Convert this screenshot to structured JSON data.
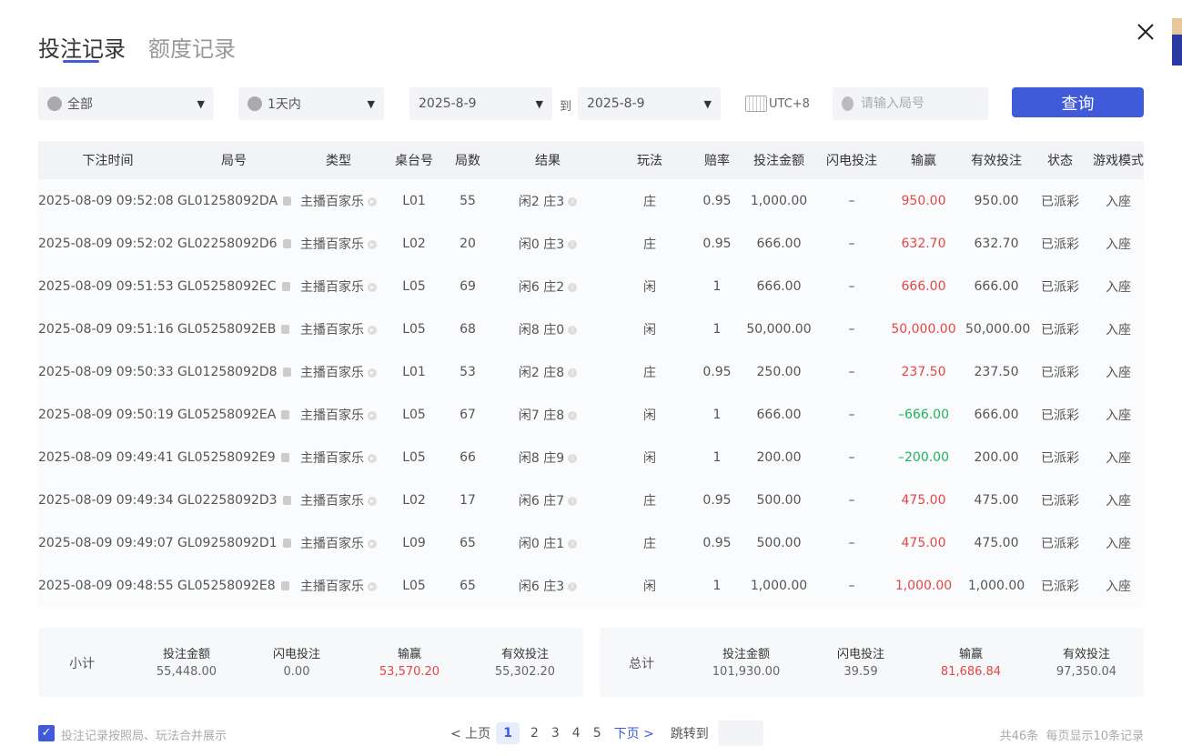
{
  "tabs": [
    {
      "label": "投注记录",
      "active": true
    },
    {
      "label": "额度记录",
      "active": false
    }
  ],
  "filters": {
    "category": "全部",
    "period": "1天内",
    "date_from": "2025-8-9",
    "to_label": "到",
    "date_to": "2025-8-9",
    "timezone": "UTC+8",
    "search_placeholder": "请输入局号",
    "search_value": "",
    "query_label": "查询"
  },
  "table": {
    "headers": [
      "下注时间",
      "局号",
      "类型",
      "桌台号",
      "局数",
      "结果",
      "玩法",
      "赔率",
      "投注金额",
      "闪电投注",
      "输赢",
      "有效投注",
      "状态",
      "游戏模式"
    ],
    "rows": [
      {
        "time": "2025-08-09 09:52:08",
        "id": "GL01258092DA",
        "type": "主播百家乐",
        "table": "L01",
        "round": "55",
        "result": "闲2 庄3",
        "play": "庄",
        "odds": "0.95",
        "bet": "1,000.00",
        "lightning": "–",
        "winloss": "950.00",
        "wl_color": "#e64646",
        "valid": "950.00",
        "status": "已派彩",
        "mode": "入座"
      },
      {
        "time": "2025-08-09 09:52:02",
        "id": "GL02258092D6",
        "type": "主播百家乐",
        "table": "L02",
        "round": "20",
        "result": "闲0 庄3",
        "play": "庄",
        "odds": "0.95",
        "bet": "666.00",
        "lightning": "–",
        "winloss": "632.70",
        "wl_color": "#e64646",
        "valid": "632.70",
        "status": "已派彩",
        "mode": "入座"
      },
      {
        "time": "2025-08-09 09:51:53",
        "id": "GL05258092EC",
        "type": "主播百家乐",
        "table": "L05",
        "round": "69",
        "result": "闲6 庄2",
        "play": "闲",
        "odds": "1",
        "bet": "666.00",
        "lightning": "–",
        "winloss": "666.00",
        "wl_color": "#e64646",
        "valid": "666.00",
        "status": "已派彩",
        "mode": "入座"
      },
      {
        "time": "2025-08-09 09:51:16",
        "id": "GL05258092EB",
        "type": "主播百家乐",
        "table": "L05",
        "round": "68",
        "result": "闲8 庄0",
        "play": "闲",
        "odds": "1",
        "bet": "50,000.00",
        "lightning": "–",
        "winloss": "50,000.00",
        "wl_color": "#e64646",
        "valid": "50,000.00",
        "status": "已派彩",
        "mode": "入座"
      },
      {
        "time": "2025-08-09 09:50:33",
        "id": "GL01258092D8",
        "type": "主播百家乐",
        "table": "L01",
        "round": "53",
        "result": "闲2 庄8",
        "play": "庄",
        "odds": "0.95",
        "bet": "250.00",
        "lightning": "–",
        "winloss": "237.50",
        "wl_color": "#e64646",
        "valid": "237.50",
        "status": "已派彩",
        "mode": "入座"
      },
      {
        "time": "2025-08-09 09:50:19",
        "id": "GL05258092EA",
        "type": "主播百家乐",
        "table": "L05",
        "round": "67",
        "result": "闲7 庄8",
        "play": "闲",
        "odds": "1",
        "bet": "666.00",
        "lightning": "–",
        "winloss": "–666.00",
        "wl_color": "#1db35c",
        "valid": "666.00",
        "status": "已派彩",
        "mode": "入座"
      },
      {
        "time": "2025-08-09 09:49:41",
        "id": "GL05258092E9",
        "type": "主播百家乐",
        "table": "L05",
        "round": "66",
        "result": "闲8 庄9",
        "play": "闲",
        "odds": "1",
        "bet": "200.00",
        "lightning": "–",
        "winloss": "–200.00",
        "wl_color": "#1db35c",
        "valid": "200.00",
        "status": "已派彩",
        "mode": "入座"
      },
      {
        "time": "2025-08-09 09:49:34",
        "id": "GL02258092D3",
        "type": "主播百家乐",
        "table": "L02",
        "round": "17",
        "result": "闲6 庄7",
        "play": "庄",
        "odds": "0.95",
        "bet": "500.00",
        "lightning": "–",
        "winloss": "475.00",
        "wl_color": "#e64646",
        "valid": "475.00",
        "status": "已派彩",
        "mode": "入座"
      },
      {
        "time": "2025-08-09 09:49:07",
        "id": "GL09258092D1",
        "type": "主播百家乐",
        "table": "L09",
        "round": "65",
        "result": "闲0 庄1",
        "play": "庄",
        "odds": "0.95",
        "bet": "500.00",
        "lightning": "–",
        "winloss": "475.00",
        "wl_color": "#e64646",
        "valid": "475.00",
        "status": "已派彩",
        "mode": "入座"
      },
      {
        "time": "2025-08-09 09:48:55",
        "id": "GL05258092E8",
        "type": "主播百家乐",
        "table": "L05",
        "round": "65",
        "result": "闲6 庄3",
        "play": "闲",
        "odds": "1",
        "bet": "1,000.00",
        "lightning": "–",
        "winloss": "1,000.00",
        "wl_color": "#e64646",
        "valid": "1,000.00",
        "status": "已派彩",
        "mode": "入座"
      }
    ]
  },
  "subtotal": {
    "label": "小计",
    "items": [
      {
        "h": "投注金额",
        "v": "55,448.00"
      },
      {
        "h": "闪电投注",
        "v": "0.00"
      },
      {
        "h": "输赢",
        "v": "53,570.20",
        "red": true
      },
      {
        "h": "有效投注",
        "v": "55,302.20"
      }
    ]
  },
  "total": {
    "label": "总计",
    "items": [
      {
        "h": "投注金额",
        "v": "101,930.00"
      },
      {
        "h": "闪电投注",
        "v": "39.59"
      },
      {
        "h": "输赢",
        "v": "81,686.84",
        "red": true
      },
      {
        "h": "有效投注",
        "v": "97,350.04"
      }
    ]
  },
  "footer": {
    "merge_checkbox_label": "投注记录按照局、玩法合并展示",
    "merge_checked": true,
    "prev": "< 上页",
    "pages": [
      "1",
      "2",
      "3",
      "4",
      "5"
    ],
    "current_page": "1",
    "next": "下页 >",
    "jump_label": "跳转到",
    "total_count": "共46条",
    "per_page": "每页显示10条记录"
  },
  "colors": {
    "accent": "#3f5bd9",
    "win": "#e64646",
    "lose": "#1db35c"
  }
}
